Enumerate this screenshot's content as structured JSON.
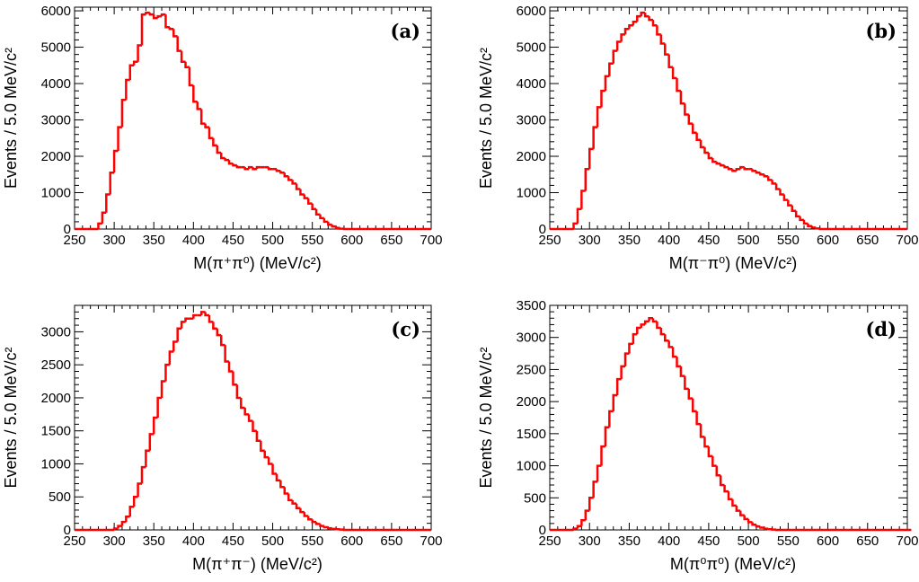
{
  "chart_data": [
    {
      "type": "line",
      "style": "step histogram",
      "panel_label": "(a)",
      "xlabel": "M(π⁺π⁰)  (MeV/c²)",
      "ylabel": "Events / 5.0 MeV/c²",
      "xlim": [
        250,
        700
      ],
      "ylim": [
        0,
        6100
      ],
      "x_ticks": [
        "250",
        "300",
        "350",
        "400",
        "450",
        "500",
        "550",
        "600",
        "650",
        "700"
      ],
      "y_ticks": [
        "0",
        "1000",
        "2000",
        "3000",
        "4000",
        "5000",
        "6000"
      ],
      "y_tick_values": [
        0,
        1000,
        2000,
        3000,
        4000,
        5000,
        6000
      ],
      "line_color": "#ff0000",
      "bin_edges_start": 250,
      "bin_width": 5,
      "values": [
        0,
        0,
        0,
        0,
        0,
        0,
        150,
        450,
        950,
        1550,
        2150,
        2800,
        3550,
        4100,
        4500,
        4600,
        5050,
        5900,
        5950,
        5900,
        5800,
        5850,
        5900,
        5550,
        5500,
        5300,
        4900,
        4600,
        4450,
        3950,
        3500,
        3300,
        2900,
        2800,
        2500,
        2300,
        2100,
        1950,
        1900,
        1800,
        1750,
        1700,
        1700,
        1650,
        1700,
        1650,
        1700,
        1700,
        1700,
        1650,
        1650,
        1600,
        1550,
        1450,
        1350,
        1250,
        1100,
        950,
        850,
        700,
        550,
        400,
        300,
        200,
        120,
        70,
        30,
        10,
        0,
        0,
        0,
        0,
        0,
        0,
        0,
        0,
        0,
        0,
        0,
        0,
        0,
        0,
        0,
        0,
        0,
        0,
        0,
        0,
        0,
        0
      ]
    },
    {
      "type": "line",
      "style": "step histogram",
      "panel_label": "(b)",
      "xlabel": "M(π⁻π⁰)  (MeV/c²)",
      "ylabel": "Events / 5.0 MeV/c²",
      "xlim": [
        250,
        700
      ],
      "ylim": [
        0,
        6100
      ],
      "x_ticks": [
        "250",
        "300",
        "350",
        "400",
        "450",
        "500",
        "550",
        "600",
        "650",
        "700"
      ],
      "y_ticks": [
        "0",
        "1000",
        "2000",
        "3000",
        "4000",
        "5000",
        "6000"
      ],
      "y_tick_values": [
        0,
        1000,
        2000,
        3000,
        4000,
        5000,
        6000
      ],
      "line_color": "#ff0000",
      "bin_edges_start": 250,
      "bin_width": 5,
      "values": [
        0,
        0,
        0,
        0,
        0,
        0,
        150,
        550,
        1050,
        1650,
        2200,
        2800,
        3350,
        3800,
        4200,
        4550,
        4900,
        5150,
        5350,
        5500,
        5600,
        5700,
        5850,
        5950,
        5850,
        5750,
        5600,
        5350,
        5100,
        4800,
        4450,
        4150,
        3800,
        3450,
        3150,
        2900,
        2650,
        2450,
        2250,
        2100,
        1950,
        1850,
        1800,
        1750,
        1700,
        1650,
        1600,
        1650,
        1700,
        1650,
        1650,
        1600,
        1550,
        1500,
        1450,
        1350,
        1250,
        1100,
        950,
        800,
        650,
        500,
        350,
        250,
        150,
        80,
        40,
        15,
        0,
        0,
        0,
        0,
        0,
        0,
        0,
        0,
        0,
        0,
        0,
        0,
        0,
        0,
        0,
        0,
        0,
        0,
        0,
        0,
        0,
        0
      ]
    },
    {
      "type": "line",
      "style": "step histogram",
      "panel_label": "(c)",
      "xlabel": "M(π⁺π⁻)  (MeV/c²)",
      "ylabel": "Events / 5.0 MeV/c²",
      "xlim": [
        250,
        700
      ],
      "ylim": [
        0,
        3400
      ],
      "x_ticks": [
        "250",
        "300",
        "350",
        "400",
        "450",
        "500",
        "550",
        "600",
        "650",
        "700"
      ],
      "y_ticks": [
        "0",
        "500",
        "1000",
        "1500",
        "2000",
        "2500",
        "3000"
      ],
      "y_tick_values": [
        0,
        500,
        1000,
        1500,
        2000,
        2500,
        3000
      ],
      "line_color": "#ff0000",
      "bin_edges_start": 250,
      "bin_width": 5,
      "values": [
        0,
        0,
        0,
        0,
        0,
        0,
        0,
        0,
        0,
        0,
        20,
        60,
        120,
        200,
        350,
        500,
        700,
        950,
        1200,
        1450,
        1700,
        2000,
        2250,
        2500,
        2700,
        2850,
        3050,
        3150,
        3200,
        3200,
        3250,
        3250,
        3300,
        3250,
        3150,
        3050,
        2950,
        2800,
        2550,
        2400,
        2200,
        2000,
        1850,
        1750,
        1650,
        1500,
        1350,
        1200,
        1100,
        1000,
        850,
        750,
        650,
        550,
        450,
        400,
        330,
        270,
        210,
        160,
        120,
        90,
        60,
        40,
        25,
        15,
        10,
        5,
        0,
        0,
        0,
        0,
        0,
        0,
        0,
        0,
        0,
        0,
        0,
        0,
        0,
        0,
        0,
        0,
        0,
        0,
        0,
        0,
        0,
        0
      ]
    },
    {
      "type": "line",
      "style": "step histogram",
      "panel_label": "(d)",
      "xlabel": "M(π⁰π⁰)  (MeV/c²)",
      "ylabel": "Events / 5.0 MeV/c²",
      "xlim": [
        250,
        700
      ],
      "ylim": [
        0,
        3500
      ],
      "x_ticks": [
        "250",
        "300",
        "350",
        "400",
        "450",
        "500",
        "550",
        "600",
        "650",
        "700"
      ],
      "y_ticks": [
        "0",
        "500",
        "1000",
        "1500",
        "2000",
        "2500",
        "3000",
        "3500"
      ],
      "y_tick_values": [
        0,
        500,
        1000,
        1500,
        2000,
        2500,
        3000,
        3500
      ],
      "line_color": "#ff0000",
      "bin_edges_start": 250,
      "bin_width": 5,
      "values": [
        0,
        0,
        0,
        0,
        0,
        0,
        20,
        60,
        150,
        300,
        500,
        750,
        1000,
        1300,
        1600,
        1850,
        2100,
        2350,
        2550,
        2750,
        2900,
        3050,
        3150,
        3200,
        3250,
        3300,
        3250,
        3150,
        3050,
        2950,
        2850,
        2700,
        2550,
        2400,
        2200,
        2050,
        1850,
        1650,
        1450,
        1300,
        1150,
        1000,
        850,
        700,
        600,
        480,
        380,
        300,
        230,
        170,
        120,
        80,
        55,
        35,
        20,
        10,
        5,
        0,
        0,
        0,
        0,
        0,
        0,
        0,
        0,
        0,
        0,
        0,
        0,
        0,
        0,
        0,
        0,
        0,
        0,
        0,
        0,
        0,
        0,
        0,
        0,
        0,
        0,
        0,
        0,
        0,
        0,
        0,
        0,
        0,
        0
      ]
    }
  ]
}
